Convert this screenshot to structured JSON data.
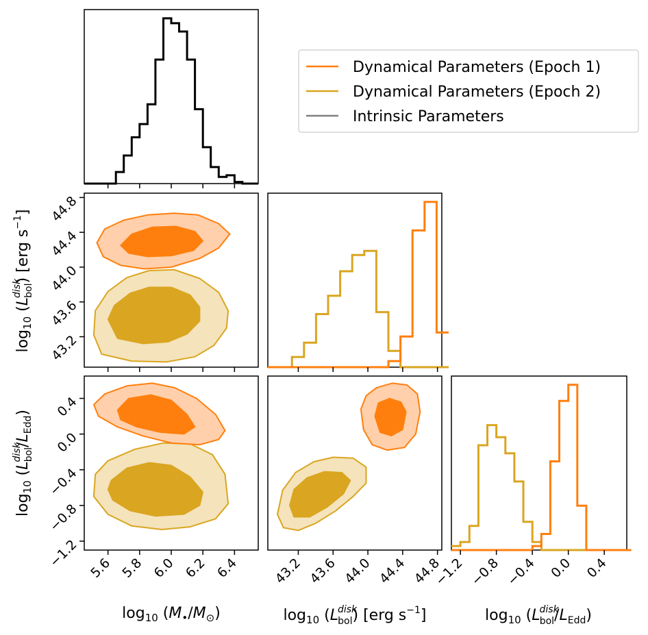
{
  "colors": {
    "epoch1": "#ff7f0e",
    "epoch1_light": "#ffd0ab",
    "epoch2": "#daa520",
    "epoch2_light": "#f4e3bb",
    "intrinsic": "#808080",
    "black": "#000000"
  },
  "legend": {
    "epoch1": "Dynamical Parameters (Epoch 1)",
    "epoch2": "Dynamical Parameters (Epoch 2)",
    "intrinsic": "Intrinsic Parameters"
  },
  "axes": {
    "mass": {
      "label": "log10(M•/M⊙)",
      "range": [
        5.45,
        6.55
      ],
      "ticks": [
        "5.6",
        "5.8",
        "6.0",
        "6.2",
        "6.4"
      ]
    },
    "lbol": {
      "label": "log10(Lbol^disk) [erg s−1]",
      "range": [
        42.85,
        44.85
      ],
      "ticks": [
        "43.2",
        "43.6",
        "44.0",
        "44.4",
        "44.8"
      ]
    },
    "edd": {
      "label": "log10(Lbol^disk/LEdd)",
      "range": [
        -1.3,
        0.65
      ],
      "ticks": [
        "−1.2",
        "−0.8",
        "−0.4",
        "0.0",
        "0.4"
      ]
    }
  },
  "chart_data": {
    "type": "corner",
    "parameters": [
      "log10(M•/M⊙)",
      "log10(Lbol^disk) [erg s−1]",
      "log10(Lbol^disk/LEdd)"
    ],
    "histograms": [
      {
        "parameter": "mass",
        "series": [
          {
            "name": "Intrinsic Parameters",
            "color": "#000000",
            "bin_start": 5.45,
            "bin_width": 0.05,
            "counts": [
              0,
              0,
              0,
              0,
              0.07,
              0.17,
              0.28,
              0.36,
              0.48,
              0.75,
              1.0,
              0.97,
              0.92,
              0.75,
              0.45,
              0.22,
              0.1,
              0.04,
              0.05,
              0.01,
              0,
              0
            ]
          }
        ]
      },
      {
        "parameter": "lbol",
        "series": [
          {
            "name": "Dynamical Parameters (Epoch 2)",
            "color": "#daa520",
            "bin_start": 42.85,
            "bin_width": 0.1386,
            "counts": [
              0,
              0,
              0.05,
              0.12,
              0.26,
              0.35,
              0.47,
              0.55,
              0.57,
              0.27,
              0.08,
              0,
              0,
              0,
              0
            ]
          },
          {
            "name": "Dynamical Parameters (Epoch 1)",
            "color": "#ff7f0e",
            "bin_start": 42.85,
            "bin_width": 0.1386,
            "counts": [
              0,
              0,
              0,
              0,
              0,
              0,
              0,
              0,
              0,
              0,
              0.03,
              0.15,
              0.67,
              0.81,
              0.17
            ]
          }
        ]
      },
      {
        "parameter": "edd",
        "series": [
          {
            "name": "Dynamical Parameters (Epoch 2)",
            "color": "#daa520",
            "bin_start": -1.3,
            "bin_width": 0.1,
            "counts": [
              0.01,
              0.02,
              0.06,
              0.26,
              0.31,
              0.28,
              0.24,
              0.17,
              0.07,
              0.02,
              0,
              0,
              0,
              0,
              0,
              0,
              0,
              0,
              0,
              0
            ]
          },
          {
            "name": "Dynamical Parameters (Epoch 1)",
            "color": "#ff7f0e",
            "bin_start": -1.3,
            "bin_width": 0.1,
            "counts": [
              0,
              0,
              0,
              0,
              0,
              0,
              0,
              0,
              0,
              0.01,
              0.04,
              0.22,
              0.37,
              0.41,
              0.11,
              0,
              0,
              0,
              0,
              0
            ]
          }
        ]
      }
    ],
    "contours": [
      {
        "x": "mass",
        "y": "lbol",
        "series": [
          {
            "name": "Dynamical Parameters (Epoch 2)",
            "levels": [
              {
                "level": "outer",
                "points": [
                  [
                    5.56,
                    43.0
                  ],
                  [
                    5.75,
                    42.92
                  ],
                  [
                    5.97,
                    42.91
                  ],
                  [
                    6.15,
                    42.97
                  ],
                  [
                    6.27,
                    43.1
                  ],
                  [
                    6.35,
                    43.3
                  ],
                  [
                    6.36,
                    43.5
                  ],
                  [
                    6.3,
                    43.71
                  ],
                  [
                    6.18,
                    43.87
                  ],
                  [
                    6.02,
                    43.97
                  ],
                  [
                    5.86,
                    43.96
                  ],
                  [
                    5.72,
                    43.88
                  ],
                  [
                    5.6,
                    43.72
                  ],
                  [
                    5.52,
                    43.5
                  ],
                  [
                    5.51,
                    43.22
                  ]
                ]
              },
              {
                "level": "inner",
                "points": [
                  [
                    5.66,
                    43.18
                  ],
                  [
                    5.82,
                    43.12
                  ],
                  [
                    5.98,
                    43.14
                  ],
                  [
                    6.1,
                    43.23
                  ],
                  [
                    6.18,
                    43.38
                  ],
                  [
                    6.18,
                    43.54
                  ],
                  [
                    6.12,
                    43.68
                  ],
                  [
                    6.0,
                    43.77
                  ],
                  [
                    5.86,
                    43.77
                  ],
                  [
                    5.74,
                    43.7
                  ],
                  [
                    5.64,
                    43.56
                  ],
                  [
                    5.6,
                    43.4
                  ]
                ]
              }
            ]
          },
          {
            "name": "Dynamical Parameters (Epoch 1)",
            "levels": [
              {
                "level": "outer",
                "points": [
                  [
                    5.53,
                    44.28
                  ],
                  [
                    5.58,
                    44.44
                  ],
                  [
                    5.7,
                    44.54
                  ],
                  [
                    5.85,
                    44.6
                  ],
                  [
                    6.02,
                    44.62
                  ],
                  [
                    6.17,
                    44.6
                  ],
                  [
                    6.3,
                    44.5
                  ],
                  [
                    6.37,
                    44.38
                  ],
                  [
                    6.3,
                    44.22
                  ],
                  [
                    6.18,
                    44.1
                  ],
                  [
                    6.0,
                    44.0
                  ],
                  [
                    5.83,
                    43.98
                  ],
                  [
                    5.68,
                    44.02
                  ],
                  [
                    5.57,
                    44.12
                  ]
                ]
              },
              {
                "level": "inner",
                "points": [
                  [
                    5.68,
                    44.25
                  ],
                  [
                    5.75,
                    44.38
                  ],
                  [
                    5.88,
                    44.46
                  ],
                  [
                    6.03,
                    44.47
                  ],
                  [
                    6.15,
                    44.41
                  ],
                  [
                    6.2,
                    44.3
                  ],
                  [
                    6.14,
                    44.19
                  ],
                  [
                    6.0,
                    44.13
                  ],
                  [
                    5.85,
                    44.12
                  ],
                  [
                    5.73,
                    44.16
                  ]
                ]
              }
            ]
          }
        ]
      },
      {
        "x": "mass",
        "y": "edd",
        "series": [
          {
            "name": "Dynamical Parameters (Epoch 2)",
            "levels": [
              {
                "level": "outer",
                "points": [
                  [
                    5.52,
                    -0.45
                  ],
                  [
                    5.6,
                    -0.3
                  ],
                  [
                    5.77,
                    -0.17
                  ],
                  [
                    5.95,
                    -0.1
                  ],
                  [
                    6.12,
                    -0.11
                  ],
                  [
                    6.26,
                    -0.23
                  ],
                  [
                    6.34,
                    -0.45
                  ],
                  [
                    6.36,
                    -0.78
                  ],
                  [
                    6.28,
                    -0.95
                  ],
                  [
                    6.12,
                    -1.04
                  ],
                  [
                    5.94,
                    -1.07
                  ],
                  [
                    5.75,
                    -1.03
                  ],
                  [
                    5.6,
                    -0.9
                  ],
                  [
                    5.51,
                    -0.7
                  ]
                ]
              },
              {
                "level": "inner",
                "points": [
                  [
                    5.62,
                    -0.52
                  ],
                  [
                    5.72,
                    -0.38
                  ],
                  [
                    5.86,
                    -0.32
                  ],
                  [
                    6.0,
                    -0.35
                  ],
                  [
                    6.12,
                    -0.48
                  ],
                  [
                    6.2,
                    -0.65
                  ],
                  [
                    6.18,
                    -0.8
                  ],
                  [
                    6.08,
                    -0.9
                  ],
                  [
                    5.9,
                    -0.92
                  ],
                  [
                    5.74,
                    -0.86
                  ],
                  [
                    5.63,
                    -0.74
                  ],
                  [
                    5.6,
                    -0.62
                  ]
                ]
              }
            ]
          },
          {
            "name": "Dynamical Parameters (Epoch 1)",
            "levels": [
              {
                "level": "outer",
                "points": [
                  [
                    5.51,
                    0.33
                  ],
                  [
                    5.58,
                    0.45
                  ],
                  [
                    5.72,
                    0.54
                  ],
                  [
                    5.88,
                    0.57
                  ],
                  [
                    6.02,
                    0.52
                  ],
                  [
                    6.16,
                    0.4
                  ],
                  [
                    6.28,
                    0.22
                  ],
                  [
                    6.34,
                    0.04
                  ],
                  [
                    6.3,
                    -0.06
                  ],
                  [
                    6.18,
                    -0.12
                  ],
                  [
                    6.0,
                    -0.1
                  ],
                  [
                    5.82,
                    -0.02
                  ],
                  [
                    5.66,
                    0.08
                  ],
                  [
                    5.54,
                    0.2
                  ]
                ]
              },
              {
                "level": "inner",
                "points": [
                  [
                    5.66,
                    0.27
                  ],
                  [
                    5.73,
                    0.4
                  ],
                  [
                    5.87,
                    0.44
                  ],
                  [
                    6.0,
                    0.38
                  ],
                  [
                    6.1,
                    0.22
                  ],
                  [
                    6.15,
                    0.08
                  ],
                  [
                    6.08,
                    0.0
                  ],
                  [
                    5.93,
                    0.02
                  ],
                  [
                    5.78,
                    0.08
                  ],
                  [
                    5.68,
                    0.16
                  ]
                ]
              }
            ]
          }
        ]
      },
      {
        "x": "lbol",
        "y": "edd",
        "series": [
          {
            "name": "Dynamical Parameters (Epoch 2)",
            "levels": [
              {
                "level": "outer",
                "points": [
                  [
                    42.96,
                    -0.9
                  ],
                  [
                    43.02,
                    -0.63
                  ],
                  [
                    43.17,
                    -0.43
                  ],
                  [
                    43.38,
                    -0.31
                  ],
                  [
                    43.6,
                    -0.26
                  ],
                  [
                    43.83,
                    -0.27
                  ],
                  [
                    43.98,
                    -0.37
                  ],
                  [
                    43.98,
                    -0.55
                  ],
                  [
                    43.83,
                    -0.7
                  ],
                  [
                    43.63,
                    -0.86
                  ],
                  [
                    43.4,
                    -1.0
                  ],
                  [
                    43.2,
                    -1.08
                  ],
                  [
                    43.03,
                    -1.05
                  ]
                ]
              },
              {
                "level": "inner",
                "points": [
                  [
                    43.1,
                    -0.8
                  ],
                  [
                    43.15,
                    -0.62
                  ],
                  [
                    43.3,
                    -0.49
                  ],
                  [
                    43.5,
                    -0.42
                  ],
                  [
                    43.7,
                    -0.43
                  ],
                  [
                    43.8,
                    -0.52
                  ],
                  [
                    43.72,
                    -0.67
                  ],
                  [
                    43.53,
                    -0.82
                  ],
                  [
                    43.33,
                    -0.93
                  ],
                  [
                    43.15,
                    -0.93
                  ]
                ]
              }
            ]
          },
          {
            "name": "Dynamical Parameters (Epoch 1)",
            "levels": [
              {
                "level": "outer",
                "points": [
                  [
                    43.92,
                    0.28
                  ],
                  [
                    43.98,
                    0.43
                  ],
                  [
                    44.1,
                    0.52
                  ],
                  [
                    44.28,
                    0.57
                  ],
                  [
                    44.45,
                    0.55
                  ],
                  [
                    44.57,
                    0.45
                  ],
                  [
                    44.6,
                    0.25
                  ],
                  [
                    44.55,
                    0.0
                  ],
                  [
                    44.42,
                    -0.15
                  ],
                  [
                    44.22,
                    -0.18
                  ],
                  [
                    44.05,
                    -0.12
                  ],
                  [
                    43.95,
                    0.05
                  ]
                ]
              },
              {
                "level": "inner",
                "points": [
                  [
                    44.08,
                    0.2
                  ],
                  [
                    44.12,
                    0.35
                  ],
                  [
                    44.25,
                    0.4
                  ],
                  [
                    44.38,
                    0.36
                  ],
                  [
                    44.44,
                    0.25
                  ],
                  [
                    44.4,
                    0.05
                  ],
                  [
                    44.27,
                    -0.02
                  ],
                  [
                    44.14,
                    0.02
                  ]
                ]
              }
            ]
          }
        ]
      }
    ]
  }
}
